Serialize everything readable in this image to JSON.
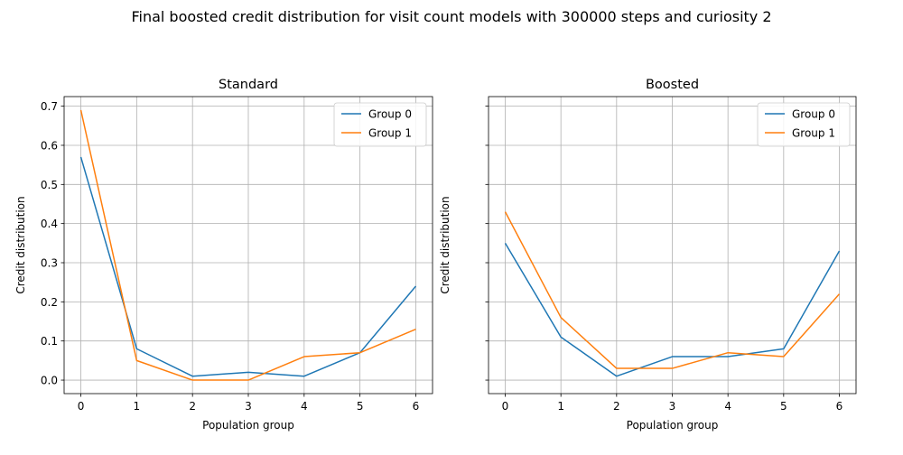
{
  "figure": {
    "title": "Final boosted credit distribution for visit count models with 300000 steps and curiosity 2"
  },
  "chart_data": [
    {
      "type": "line",
      "title": "Standard",
      "xlabel": "Population group",
      "ylabel": "Credit distribution",
      "x": [
        0,
        1,
        2,
        3,
        4,
        5,
        6
      ],
      "xticks": [
        0,
        1,
        2,
        3,
        4,
        5,
        6
      ],
      "xlim": [
        -0.3,
        6.3
      ],
      "yticks": [
        0.0,
        0.1,
        0.2,
        0.3,
        0.4,
        0.5,
        0.6,
        0.7
      ],
      "ylim": [
        -0.0345,
        0.7245
      ],
      "show_ytick_labels": true,
      "grid": true,
      "legend_loc": "upper right",
      "series": [
        {
          "name": "Group 0",
          "color": "#1f77b4",
          "values": [
            0.57,
            0.08,
            0.01,
            0.02,
            0.01,
            0.07,
            0.24
          ]
        },
        {
          "name": "Group 1",
          "color": "#ff7f0e",
          "values": [
            0.69,
            0.05,
            0.0,
            0.0,
            0.06,
            0.07,
            0.13
          ]
        }
      ]
    },
    {
      "type": "line",
      "title": "Boosted",
      "xlabel": "Population group",
      "ylabel": "Credit distribution",
      "x": [
        0,
        1,
        2,
        3,
        4,
        5,
        6
      ],
      "xticks": [
        0,
        1,
        2,
        3,
        4,
        5,
        6
      ],
      "xlim": [
        -0.3,
        6.3
      ],
      "yticks": [
        0.0,
        0.1,
        0.2,
        0.3,
        0.4,
        0.5,
        0.6,
        0.7
      ],
      "ylim": [
        -0.0345,
        0.7245
      ],
      "show_ytick_labels": false,
      "grid": true,
      "legend_loc": "upper right",
      "series": [
        {
          "name": "Group 0",
          "color": "#1f77b4",
          "values": [
            0.35,
            0.11,
            0.01,
            0.06,
            0.06,
            0.08,
            0.33
          ]
        },
        {
          "name": "Group 1",
          "color": "#ff7f0e",
          "values": [
            0.43,
            0.16,
            0.03,
            0.03,
            0.07,
            0.06,
            0.22
          ]
        }
      ]
    }
  ]
}
